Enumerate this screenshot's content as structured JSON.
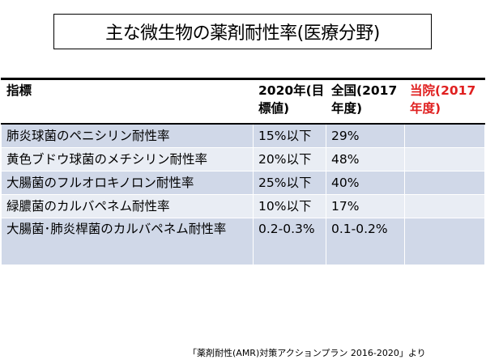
{
  "title": "主な微生物の薬剤耐性率(医療分野)",
  "table": {
    "headers": {
      "indicator": "指標",
      "target_2020": "2020年(目標値)",
      "national_2017": "全国(2017年度)",
      "hospital_2017": "当院(2017年度)"
    },
    "accent_color": "#e02020",
    "rows": [
      {
        "indicator": "肺炎球菌のペニシリン耐性率",
        "target_2020": "15%以下",
        "national_2017": "29%",
        "hospital_2017": ""
      },
      {
        "indicator": "黄色ブドウ球菌のメチシリン耐性率",
        "target_2020": "20%以下",
        "national_2017": "48%",
        "hospital_2017": ""
      },
      {
        "indicator": "大腸菌のフルオロキノロン耐性率",
        "target_2020": "25%以下",
        "national_2017": "40%",
        "hospital_2017": ""
      },
      {
        "indicator": "緑膿菌のカルバペネム耐性率",
        "target_2020": "10%以下",
        "national_2017": "17%",
        "hospital_2017": ""
      },
      {
        "indicator": "大腸菌･肺炎桿菌のカルバペネム耐性率",
        "target_2020": "0.2-0.3%",
        "national_2017": "0.1-0.2%",
        "hospital_2017": ""
      }
    ]
  },
  "source": "「薬剤耐性(AMR)対策アクションプラン 2016-2020」より"
}
